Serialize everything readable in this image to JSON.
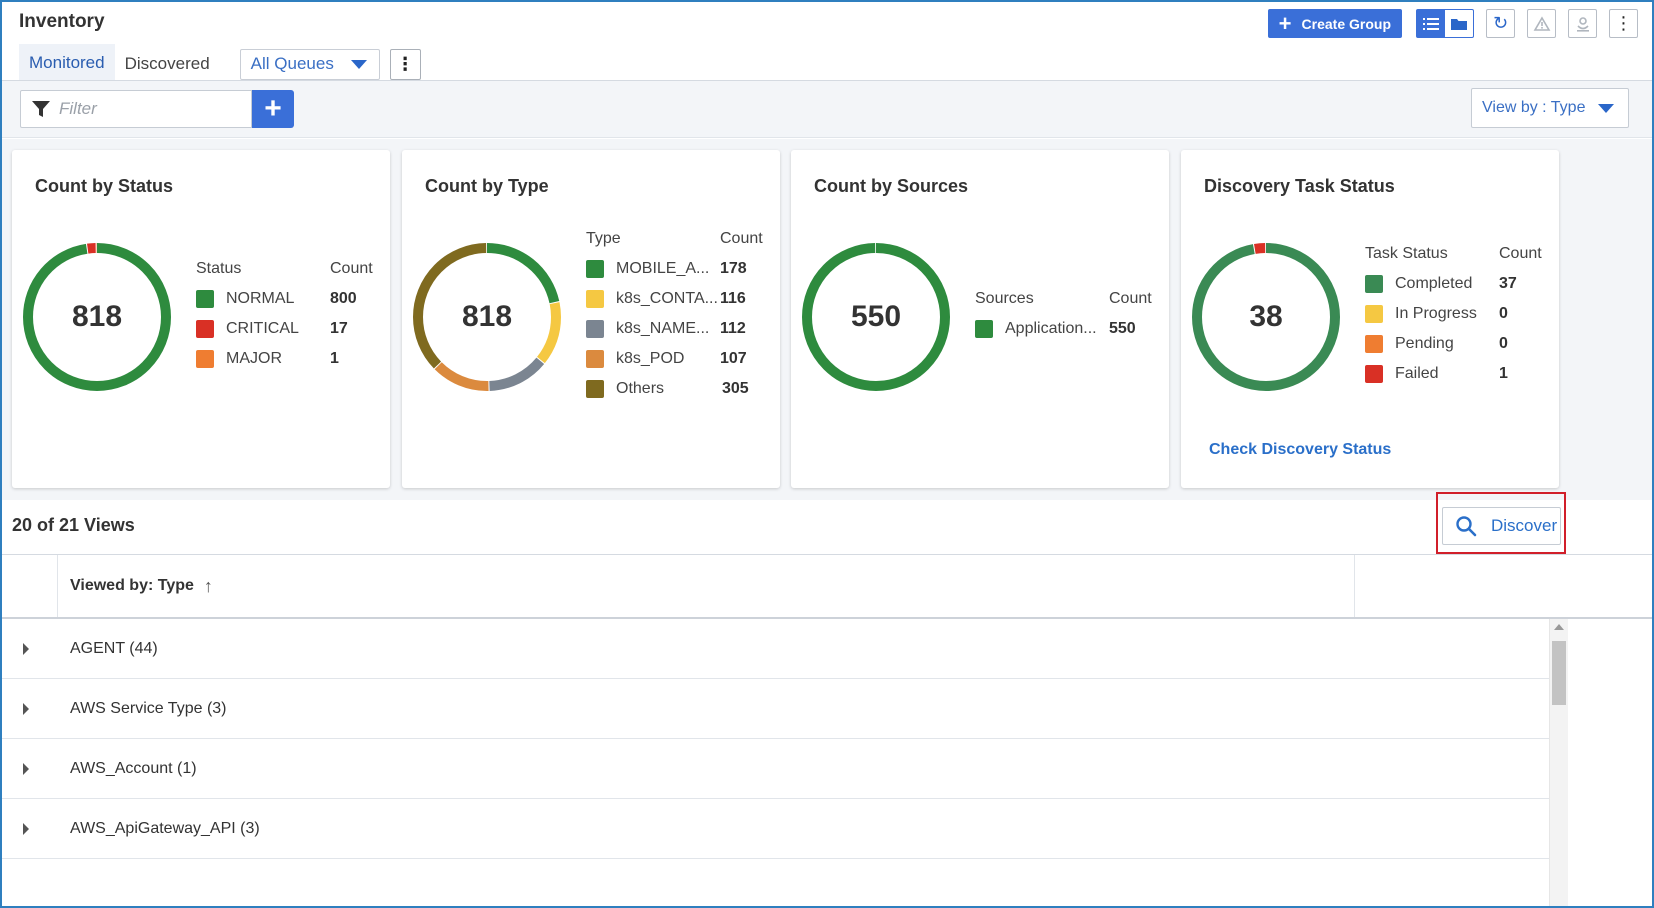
{
  "header": {
    "title": "Inventory",
    "tabs": [
      {
        "label": "Monitored",
        "active": true
      },
      {
        "label": "Discovered",
        "active": false
      }
    ],
    "queue_select": "All Queues",
    "create_group_label": "Create Group"
  },
  "filterbar": {
    "filter_placeholder": "Filter",
    "view_by": "View by : Type"
  },
  "cards": {
    "status": {
      "title": "Count by Status",
      "total": "818",
      "col_label": "Status",
      "col_count": "Count",
      "items": [
        {
          "label": "NORMAL",
          "count": "800",
          "color": "#2e8b3e"
        },
        {
          "label": "CRITICAL",
          "count": "17",
          "color": "#d93025"
        },
        {
          "label": "MAJOR",
          "count": "1",
          "color": "#ef7d31"
        }
      ]
    },
    "type": {
      "title": "Count by Type",
      "total": "818",
      "col_label": "Type",
      "col_count": "Count",
      "items": [
        {
          "label": "MOBILE_A...",
          "count": "178",
          "color": "#2e8b3e"
        },
        {
          "label": "k8s_CONTA...",
          "count": "116",
          "color": "#f5c842"
        },
        {
          "label": "k8s_NAME...",
          "count": "112",
          "color": "#7b8591"
        },
        {
          "label": "k8s_POD",
          "count": "107",
          "color": "#db8a3e"
        },
        {
          "label": "Others",
          "count": "305",
          "color": "#7f6a1f"
        }
      ]
    },
    "sources": {
      "title": "Count by Sources",
      "total": "550",
      "col_label": "Sources",
      "col_count": "Count",
      "items": [
        {
          "label": "Application...",
          "count": "550",
          "color": "#2e8b3e"
        }
      ]
    },
    "discovery": {
      "title": "Discovery Task Status",
      "total": "38",
      "col_label": "Task Status",
      "col_count": "Count",
      "items": [
        {
          "label": "Completed",
          "count": "37",
          "color": "#3a8a54"
        },
        {
          "label": "In Progress",
          "count": "0",
          "color": "#f5c842"
        },
        {
          "label": "Pending",
          "count": "0",
          "color": "#ef7d31"
        },
        {
          "label": "Failed",
          "count": "1",
          "color": "#d93025"
        }
      ],
      "link": "Check Discovery Status"
    }
  },
  "views": {
    "title": "20 of 21 Views",
    "discover_label": "Discover",
    "column_header": "Viewed by: Type",
    "sort_arrow": "↑",
    "rows": [
      {
        "label": "AGENT (44)"
      },
      {
        "label": "AWS Service Type (3)"
      },
      {
        "label": "AWS_Account (1)"
      },
      {
        "label": "AWS_ApiGateway_API (3)"
      }
    ]
  }
}
